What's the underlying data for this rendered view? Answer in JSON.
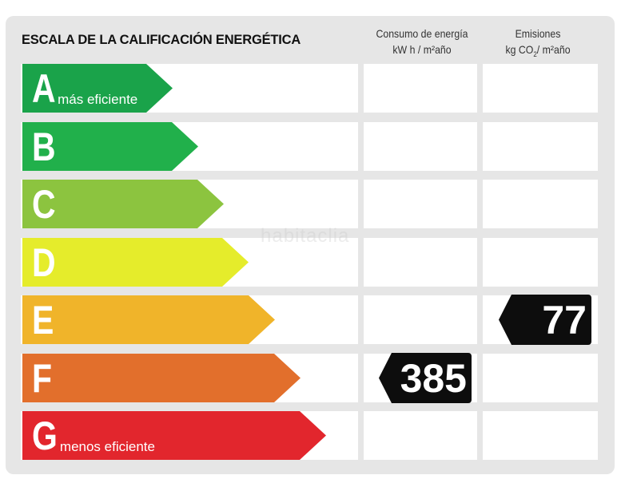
{
  "title": "ESCALA DE LA CALIFICACIÓN ENERGÉTICA",
  "columns": {
    "energy": {
      "line1": "Consumo de energía",
      "line2": "kW h / m²año"
    },
    "emissions": {
      "line1": "Emisiones",
      "line2_pre": "kg CO",
      "line2_sub": "2",
      "line2_post": "/ m²año"
    }
  },
  "classes": [
    {
      "letter": "A",
      "desc": "más eficiente",
      "color": "#1aa34a"
    },
    {
      "letter": "B",
      "desc": "",
      "color": "#21b04b"
    },
    {
      "letter": "C",
      "desc": "",
      "color": "#8cc43f"
    },
    {
      "letter": "D",
      "desc": "",
      "color": "#e5ec2b"
    },
    {
      "letter": "E",
      "desc": "",
      "color": "#f0b42a"
    },
    {
      "letter": "F",
      "desc": "",
      "color": "#e26f2c"
    },
    {
      "letter": "G",
      "desc": "menos eficiente",
      "color": "#e2262d"
    }
  ],
  "rating": {
    "energy": {
      "value": "385",
      "class": "F"
    },
    "emissions": {
      "value": "77",
      "class": "E"
    }
  },
  "watermark": "habitaclia"
}
